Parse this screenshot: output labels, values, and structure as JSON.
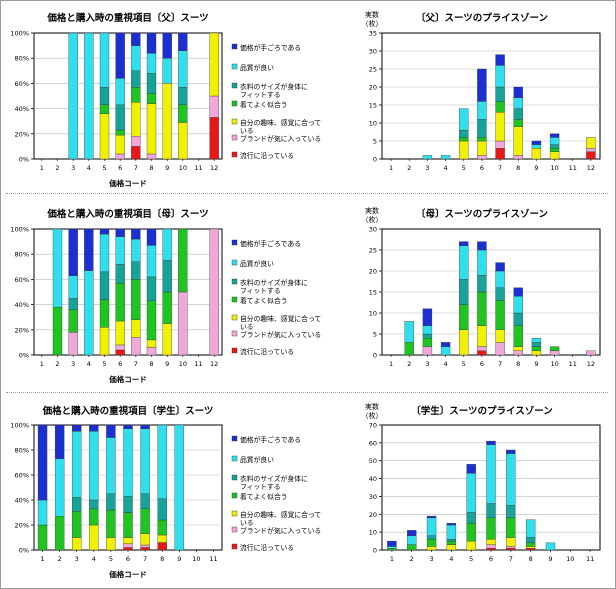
{
  "legend_items": [
    {
      "label": "価格が手ごろである",
      "color": "#1c2fd0"
    },
    {
      "label": "品質が良い",
      "color": "#2fe0ec"
    },
    {
      "label": "衣料のサイズが身体に\nフィットする",
      "color": "#16a39a"
    },
    {
      "label": "着てよく似合う",
      "color": "#20c420"
    },
    {
      "label": "自分の趣味、感覚に合って\nいる",
      "color": "#f0f000"
    },
    {
      "label": "ブランドが気に入っている",
      "color": "#f0a8d8"
    },
    {
      "label": "流行に沿っている",
      "color": "#e81818"
    }
  ],
  "chart_data": [
    {
      "type": "bar",
      "title": "価格と購入時の重視項目〔父〕スーツ",
      "xlabel": "価格コード",
      "ylabel": "",
      "ylim": [
        0,
        100
      ],
      "yticks": [
        "0%",
        "20%",
        "40%",
        "60%",
        "80%",
        "100%"
      ],
      "stacked": true,
      "percent": true,
      "categories": [
        "1",
        "2",
        "3",
        "4",
        "5",
        "6",
        "7",
        "8",
        "9",
        "10",
        "11",
        "12"
      ],
      "series": [
        {
          "name": "流行に沿っている",
          "values": [
            0,
            0,
            0,
            0,
            0,
            0,
            10,
            0,
            0,
            0,
            0,
            33
          ]
        },
        {
          "name": "ブランドが気に入っている",
          "values": [
            0,
            0,
            0,
            0,
            0,
            4,
            8,
            4,
            0,
            0,
            0,
            17
          ]
        },
        {
          "name": "自分の趣味、感覚に合っている",
          "values": [
            0,
            0,
            0,
            0,
            36,
            15,
            27,
            40,
            60,
            29,
            0,
            50
          ]
        },
        {
          "name": "着てよく似合う",
          "values": [
            0,
            0,
            0,
            0,
            7,
            4,
            12,
            8,
            0,
            14,
            0,
            0
          ]
        },
        {
          "name": "衣料のサイズが身体にフィットする",
          "values": [
            0,
            0,
            0,
            0,
            14,
            20,
            13,
            16,
            0,
            14,
            0,
            0
          ]
        },
        {
          "name": "品質が良い",
          "values": [
            0,
            0,
            100,
            100,
            43,
            21,
            20,
            16,
            20,
            29,
            0,
            0
          ]
        },
        {
          "name": "価格が手ごろである",
          "values": [
            0,
            0,
            0,
            0,
            0,
            36,
            10,
            16,
            20,
            14,
            0,
            0
          ]
        }
      ]
    },
    {
      "type": "bar",
      "title": "〔父〕スーツのプライスゾーン",
      "ylabel": "実数\n（枚）",
      "ylim": [
        0,
        35
      ],
      "yticks": [
        "0",
        "5",
        "10",
        "15",
        "20",
        "25",
        "30",
        "35"
      ],
      "stacked": true,
      "categories": [
        "1",
        "2",
        "3",
        "4",
        "5",
        "6",
        "7",
        "8",
        "9",
        "10",
        "11",
        "12"
      ],
      "series": [
        {
          "name": "流行に沿っている",
          "values": [
            0,
            0,
            0,
            0,
            0,
            0,
            3,
            0,
            0,
            0,
            0,
            2
          ]
        },
        {
          "name": "ブランドが気に入っている",
          "values": [
            0,
            0,
            0,
            0,
            0,
            1,
            2,
            1,
            0,
            0,
            0,
            1
          ]
        },
        {
          "name": "自分の趣味、感覚に合っている",
          "values": [
            0,
            0,
            0,
            0,
            5,
            4,
            8,
            8,
            3,
            2,
            0,
            3
          ]
        },
        {
          "name": "着てよく似合う",
          "values": [
            0,
            0,
            0,
            0,
            1,
            1,
            3,
            2,
            0,
            1,
            0,
            0
          ]
        },
        {
          "name": "衣料のサイズが身体にフィットする",
          "values": [
            0,
            0,
            0,
            0,
            2,
            5,
            4,
            3,
            0,
            1,
            0,
            0
          ]
        },
        {
          "name": "品質が良い",
          "values": [
            0,
            0,
            1,
            1,
            6,
            5,
            6,
            3,
            1,
            2,
            0,
            0
          ]
        },
        {
          "name": "価格が手ごろである",
          "values": [
            0,
            0,
            0,
            0,
            0,
            9,
            3,
            3,
            1,
            1,
            0,
            0
          ]
        }
      ]
    },
    {
      "type": "bar",
      "title": "価格と購入時の重視項目〔母〕スーツ",
      "xlabel": "価格コード",
      "ylabel": "",
      "ylim": [
        0,
        100
      ],
      "yticks": [
        "0%",
        "20%",
        "40%",
        "60%",
        "80%",
        "100%"
      ],
      "stacked": true,
      "percent": true,
      "categories": [
        "1",
        "2",
        "3",
        "4",
        "5",
        "6",
        "7",
        "8",
        "9",
        "10",
        "11",
        "12"
      ],
      "series": [
        {
          "name": "流行に沿っている",
          "values": [
            0,
            0,
            0,
            0,
            0,
            4,
            0,
            0,
            0,
            0,
            0,
            0
          ]
        },
        {
          "name": "ブランドが気に入っている",
          "values": [
            0,
            0,
            18,
            0,
            0,
            4,
            14,
            6,
            0,
            50,
            0,
            100
          ]
        },
        {
          "name": "自分の趣味、感覚に合っている",
          "values": [
            0,
            0,
            0,
            0,
            22,
            19,
            14,
            6,
            25,
            0,
            0,
            0
          ]
        },
        {
          "name": "着てよく似合う",
          "values": [
            0,
            38,
            18,
            0,
            22,
            30,
            32,
            31,
            25,
            50,
            0,
            0
          ]
        },
        {
          "name": "衣料のサイズが身体にフィットする",
          "values": [
            0,
            0,
            9,
            0,
            22,
            15,
            14,
            19,
            25,
            0,
            0,
            0
          ]
        },
        {
          "name": "品質が良い",
          "values": [
            0,
            62,
            18,
            67,
            30,
            22,
            18,
            25,
            25,
            0,
            0,
            0
          ]
        },
        {
          "name": "価格が手ごろである",
          "values": [
            0,
            0,
            37,
            33,
            4,
            6,
            8,
            13,
            0,
            0,
            0,
            0
          ]
        }
      ]
    },
    {
      "type": "bar",
      "title": "〔母〕スーツのプライスゾーン",
      "ylabel": "実数\n（枚）",
      "ylim": [
        0,
        30
      ],
      "yticks": [
        "0",
        "5",
        "10",
        "15",
        "20",
        "25",
        "30"
      ],
      "stacked": true,
      "categories": [
        "1",
        "2",
        "3",
        "4",
        "5",
        "6",
        "7",
        "8",
        "9",
        "10",
        "11",
        "12"
      ],
      "series": [
        {
          "name": "流行に沿っている",
          "values": [
            0,
            0,
            0,
            0,
            0,
            1,
            0,
            0,
            0,
            0,
            0,
            0
          ]
        },
        {
          "name": "ブランドが気に入っている",
          "values": [
            0,
            0,
            2,
            0,
            0,
            1,
            3,
            1,
            0,
            1,
            0,
            1
          ]
        },
        {
          "name": "自分の趣味、感覚に合っている",
          "values": [
            0,
            0,
            0,
            0,
            6,
            5,
            3,
            1,
            1,
            0,
            0,
            0
          ]
        },
        {
          "name": "着てよく似合う",
          "values": [
            0,
            3,
            2,
            0,
            6,
            8,
            7,
            5,
            1,
            1,
            0,
            0
          ]
        },
        {
          "name": "衣料のサイズが身体にフィットする",
          "values": [
            0,
            0,
            1,
            0,
            6,
            4,
            3,
            3,
            1,
            0,
            0,
            0
          ]
        },
        {
          "name": "品質が良い",
          "values": [
            0,
            5,
            2,
            2,
            8,
            6,
            4,
            4,
            1,
            0,
            0,
            0
          ]
        },
        {
          "name": "価格が手ごろである",
          "values": [
            0,
            0,
            4,
            1,
            1,
            2,
            2,
            2,
            0,
            0,
            0,
            0
          ]
        }
      ]
    },
    {
      "type": "bar",
      "title": "価格と購入時の重視項目〔学生〕スーツ",
      "xlabel": "価格コード",
      "ylabel": "",
      "ylim": [
        0,
        100
      ],
      "yticks": [
        "0%",
        "20%",
        "40%",
        "60%",
        "80%",
        "100%"
      ],
      "stacked": true,
      "percent": true,
      "categories": [
        "1",
        "2",
        "3",
        "4",
        "5",
        "6",
        "7",
        "8",
        "9",
        "10",
        "11"
      ],
      "series": [
        {
          "name": "流行に沿っている",
          "values": [
            0,
            0,
            0,
            0,
            0,
            2,
            2,
            6,
            0,
            0,
            0
          ]
        },
        {
          "name": "ブランドが気に入っている",
          "values": [
            0,
            0,
            0,
            0,
            0,
            3,
            2,
            0,
            0,
            0,
            0
          ]
        },
        {
          "name": "自分の趣味、感覚に合っている",
          "values": [
            0,
            0,
            10,
            20,
            10,
            5,
            9,
            6,
            0,
            0,
            0
          ]
        },
        {
          "name": "着てよく似合う",
          "values": [
            20,
            27,
            21,
            13,
            22,
            20,
            20,
            12,
            0,
            0,
            0
          ]
        },
        {
          "name": "衣料のサイズが身体にフィットする",
          "values": [
            0,
            0,
            11,
            7,
            13,
            13,
            12,
            17,
            0,
            0,
            0
          ]
        },
        {
          "name": "品質が良い",
          "values": [
            20,
            46,
            53,
            55,
            45,
            54,
            52,
            59,
            100,
            0,
            0
          ]
        },
        {
          "name": "価格が手ごろである",
          "values": [
            60,
            27,
            5,
            5,
            10,
            3,
            3,
            0,
            0,
            0,
            0
          ]
        }
      ]
    },
    {
      "type": "bar",
      "title": "〔学生〕スーツのプライスゾーン",
      "ylabel": "実数\n（枚）",
      "ylim": [
        0,
        70
      ],
      "yticks": [
        "0",
        "10",
        "20",
        "30",
        "40",
        "50",
        "60",
        "70"
      ],
      "stacked": true,
      "categories": [
        "1",
        "2",
        "3",
        "4",
        "5",
        "6",
        "7",
        "8",
        "9",
        "10",
        "11"
      ],
      "series": [
        {
          "name": "流行に沿っている",
          "values": [
            0,
            0,
            0,
            0,
            0,
            1,
            1,
            1,
            0,
            0,
            0
          ]
        },
        {
          "name": "ブランドが気に入っている",
          "values": [
            0,
            0,
            0,
            0,
            0,
            2,
            1,
            0,
            0,
            0,
            0
          ]
        },
        {
          "name": "自分の趣味、感覚に合っている",
          "values": [
            0,
            0,
            2,
            3,
            5,
            3,
            5,
            1,
            0,
            0,
            0
          ]
        },
        {
          "name": "着てよく似合う",
          "values": [
            1,
            3,
            4,
            2,
            10,
            12,
            11,
            2,
            0,
            0,
            0
          ]
        },
        {
          "name": "衣料のサイズが身体にフィットする",
          "values": [
            0,
            0,
            2,
            1,
            6,
            8,
            7,
            3,
            0,
            0,
            0
          ]
        },
        {
          "name": "品質が良い",
          "values": [
            1,
            5,
            10,
            8,
            22,
            33,
            29,
            10,
            4,
            0,
            0
          ]
        },
        {
          "name": "価格が手ごろである",
          "values": [
            3,
            3,
            1,
            1,
            5,
            2,
            2,
            0,
            0,
            0,
            0
          ]
        }
      ]
    }
  ]
}
